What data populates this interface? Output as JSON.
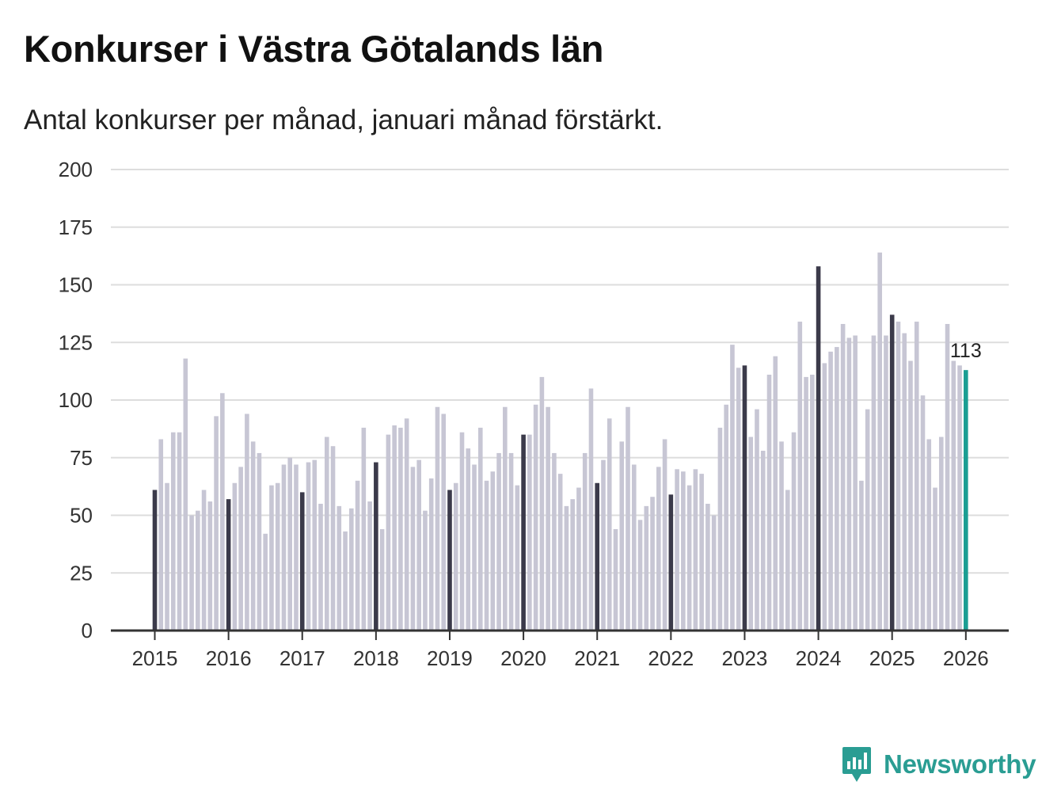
{
  "chart_data": {
    "type": "bar",
    "title": "Konkurser i Västra Götalands län",
    "subtitle": "Antal konkurser per månad, januari månad förstärkt.",
    "xlabel": "",
    "ylabel": "",
    "ylim": [
      0,
      200
    ],
    "y_ticks": [
      "0",
      "25",
      "50",
      "75",
      "100",
      "125",
      "150",
      "175",
      "200"
    ],
    "x_tick_labels": [
      "2015",
      "2016",
      "2017",
      "2018",
      "2019",
      "2020",
      "2021",
      "2022",
      "2023",
      "2024",
      "2025",
      "2026"
    ],
    "grid": true,
    "start": "2015-01",
    "values": [
      61,
      83,
      64,
      86,
      86,
      118,
      50,
      52,
      61,
      56,
      93,
      103,
      57,
      64,
      71,
      94,
      82,
      77,
      42,
      63,
      64,
      72,
      75,
      72,
      60,
      73,
      74,
      55,
      84,
      80,
      54,
      43,
      53,
      65,
      88,
      56,
      73,
      44,
      85,
      89,
      88,
      92,
      71,
      74,
      52,
      66,
      97,
      94,
      61,
      64,
      86,
      79,
      72,
      88,
      65,
      69,
      77,
      97,
      77,
      63,
      85,
      85,
      98,
      110,
      97,
      77,
      68,
      54,
      57,
      62,
      77,
      105,
      64,
      74,
      92,
      44,
      82,
      97,
      72,
      48,
      54,
      58,
      71,
      83,
      59,
      70,
      69,
      63,
      70,
      68,
      55,
      50,
      88,
      98,
      124,
      114,
      115,
      84,
      96,
      78,
      111,
      119,
      82,
      61,
      86,
      134,
      110,
      111,
      158,
      116,
      121,
      123,
      133,
      127,
      128,
      65,
      96,
      128,
      164,
      128,
      137,
      134,
      129,
      117,
      134,
      102,
      83,
      62,
      84,
      133,
      117,
      115,
      113
    ],
    "highlight_label": "113",
    "colors": {
      "regular": "#c7c6d4",
      "january": "#3b3a4a",
      "latest": "#1a9e93",
      "grid": "#dddddd",
      "axis": "#333333"
    }
  },
  "branding": {
    "name": "Newsworthy",
    "color": "#2a9d93"
  }
}
